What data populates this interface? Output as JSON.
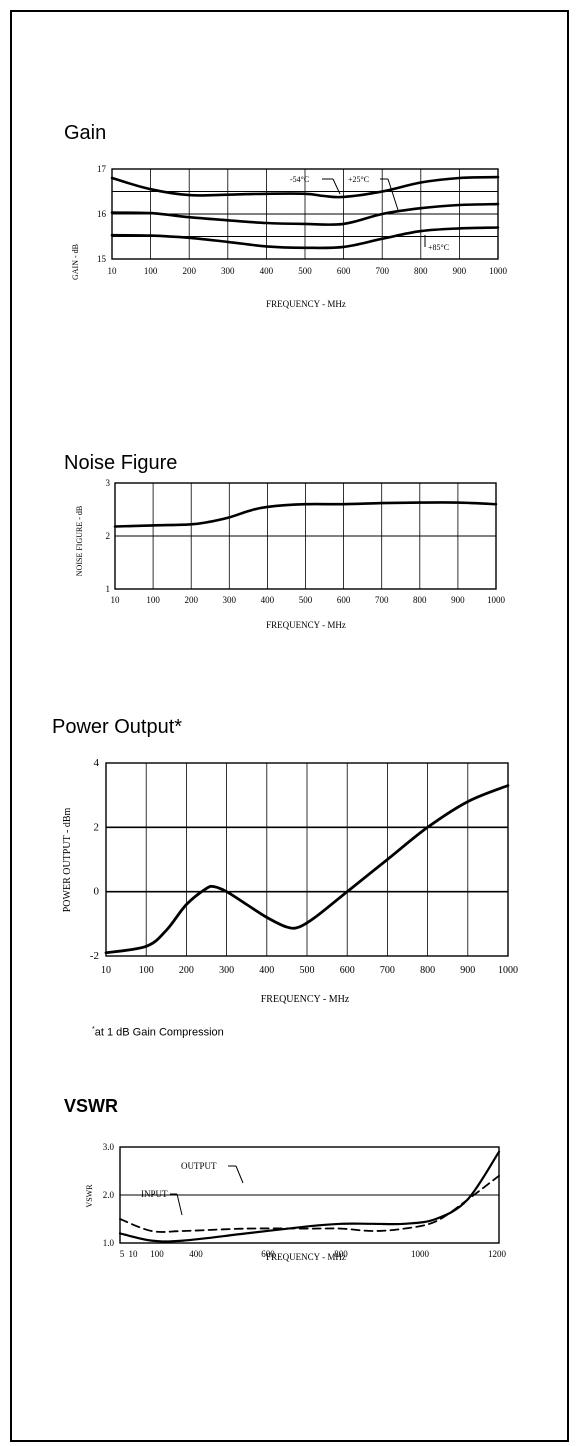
{
  "colors": {
    "background": "#ffffff",
    "ink": "#000000"
  },
  "chart_data": [
    {
      "type": "line",
      "title": "Gain",
      "xlabel": "FREQUENCY - MHz",
      "ylabel": "GAIN - dB",
      "x_tick_labels": [
        "10",
        "100",
        "200",
        "300",
        "400",
        "500",
        "600",
        "700",
        "800",
        "900",
        "1000"
      ],
      "y_tick_labels": [
        "15",
        "16",
        "17"
      ],
      "xlim": [
        0,
        1000
      ],
      "ylim": [
        15,
        17
      ],
      "grid": true,
      "series": [
        {
          "name": "-54°C",
          "x": [
            0,
            100,
            200,
            300,
            400,
            500,
            550,
            600,
            700,
            800,
            900,
            1000
          ],
          "y": [
            16.8,
            16.55,
            16.42,
            16.43,
            16.45,
            16.45,
            16.4,
            16.38,
            16.5,
            16.7,
            16.8,
            16.82
          ]
        },
        {
          "name": "+25°C",
          "x": [
            0,
            100,
            200,
            300,
            400,
            500,
            600,
            700,
            800,
            900,
            1000
          ],
          "y": [
            16.03,
            16.02,
            15.93,
            15.86,
            15.8,
            15.78,
            15.78,
            16.0,
            16.13,
            16.2,
            16.22
          ]
        },
        {
          "name": "+85°C",
          "x": [
            0,
            100,
            200,
            300,
            400,
            500,
            600,
            700,
            800,
            900,
            1000
          ],
          "y": [
            15.53,
            15.52,
            15.47,
            15.38,
            15.28,
            15.25,
            15.27,
            15.45,
            15.62,
            15.68,
            15.7
          ]
        }
      ],
      "annotations": [
        "-54°C",
        "+25°C",
        "+85°C"
      ]
    },
    {
      "type": "line",
      "title": "Noise Figure",
      "xlabel": "FREQUENCY - MHz",
      "ylabel": "NOISE FIGURE - dB",
      "x_tick_labels": [
        "10",
        "100",
        "200",
        "300",
        "400",
        "500",
        "600",
        "700",
        "800",
        "900",
        "1000"
      ],
      "y_tick_labels": [
        "1",
        "2",
        "3"
      ],
      "xlim": [
        0,
        1000
      ],
      "ylim": [
        1,
        3
      ],
      "grid": true,
      "series": [
        {
          "x": [
            0,
            100,
            200,
            250,
            300,
            350,
            400,
            500,
            600,
            700,
            800,
            900,
            1000
          ],
          "y": [
            2.18,
            2.2,
            2.22,
            2.27,
            2.35,
            2.47,
            2.55,
            2.6,
            2.6,
            2.62,
            2.63,
            2.63,
            2.6
          ]
        }
      ]
    },
    {
      "type": "line",
      "title": "Power Output*",
      "xlabel": "FREQUENCY - MHz",
      "ylabel": "POWER OUTPUT - dBm",
      "x_tick_labels": [
        "10",
        "100",
        "200",
        "300",
        "400",
        "500",
        "600",
        "700",
        "800",
        "900",
        "1000"
      ],
      "y_tick_labels": [
        "-2",
        "0",
        "2",
        "4"
      ],
      "xlim": [
        0,
        1000
      ],
      "ylim": [
        -2,
        4
      ],
      "grid": true,
      "series": [
        {
          "x": [
            0,
            100,
            150,
            200,
            250,
            270,
            300,
            350,
            400,
            450,
            480,
            520,
            600,
            700,
            800,
            900,
            1000
          ],
          "y": [
            -1.9,
            -1.7,
            -1.2,
            -0.4,
            0.1,
            0.15,
            0.0,
            -0.4,
            -0.8,
            -1.1,
            -1.1,
            -0.8,
            0.0,
            1.0,
            2.0,
            2.8,
            3.3
          ]
        }
      ],
      "footnote": "at 1 dB Gain Compression"
    },
    {
      "type": "line",
      "title": "VSWR",
      "xlabel": "FREQUENCY - MHz",
      "ylabel": "VSWR",
      "x_tick_labels": [
        "5",
        "10",
        "100",
        "400",
        "600",
        "800",
        "1000",
        "1200"
      ],
      "y_tick_labels": [
        "1.0",
        "2.0",
        "3.0"
      ],
      "xlim": [
        0,
        1200
      ],
      "ylim": [
        1.0,
        3.0
      ],
      "grid": true,
      "series": [
        {
          "name": "INPUT",
          "style": "solid",
          "x": [
            0,
            100,
            200,
            400,
            600,
            700,
            800,
            900,
            1000,
            1100,
            1200
          ],
          "y": [
            1.2,
            1.05,
            1.05,
            1.2,
            1.35,
            1.4,
            1.4,
            1.4,
            1.5,
            1.9,
            2.9
          ]
        },
        {
          "name": "OUTPUT",
          "style": "dashed",
          "x": [
            0,
            100,
            200,
            400,
            600,
            700,
            800,
            900,
            1000,
            1100,
            1200
          ],
          "y": [
            1.5,
            1.25,
            1.25,
            1.3,
            1.3,
            1.3,
            1.25,
            1.3,
            1.45,
            1.9,
            2.4
          ]
        }
      ],
      "annotations": [
        "INPUT",
        "OUTPUT"
      ]
    }
  ]
}
